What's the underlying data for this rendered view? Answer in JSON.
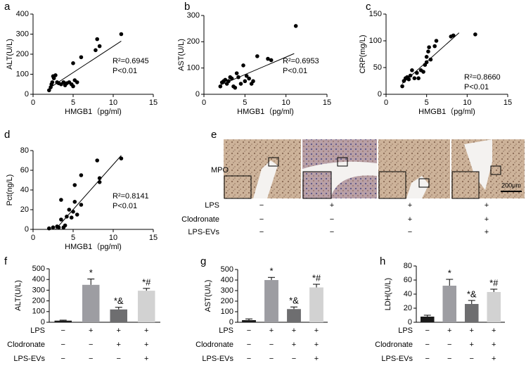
{
  "chart_data": [
    {
      "panel": "a",
      "type": "scatter",
      "xlabel": "HMGB1（pg/ml)",
      "ylabel": "ALT(U/L)",
      "annotation": [
        "R²=0.6945",
        "P<0.01"
      ],
      "xlim": [
        0,
        15
      ],
      "xticks": [
        0,
        5,
        10,
        15
      ],
      "ylim": [
        0,
        400
      ],
      "yticks": [
        0,
        100,
        200,
        300,
        400
      ],
      "color": "#000000",
      "x": [
        2,
        2.2,
        2.3,
        2.4,
        2.5,
        2.6,
        2.8,
        3,
        3.2,
        3.5,
        3.8,
        4,
        4.2,
        4.5,
        4.8,
        5,
        5.2,
        5.5,
        5,
        6,
        7.8,
        8,
        8.3,
        11
      ],
      "y": [
        20,
        35,
        50,
        60,
        90,
        80,
        95,
        60,
        55,
        50,
        60,
        45,
        55,
        60,
        50,
        40,
        70,
        60,
        155,
        185,
        220,
        275,
        240,
        300
      ],
      "trend_x": [
        2,
        11
      ],
      "trend_y": [
        30,
        265
      ]
    },
    {
      "panel": "b",
      "type": "scatter",
      "xlabel": "HMGB1（pg/ml)",
      "ylabel": "AST(U/L)",
      "annotation": [
        "R²=0.6953",
        "P<0.01"
      ],
      "xlim": [
        0,
        15
      ],
      "xticks": [
        0,
        5,
        10,
        15
      ],
      "ylim": [
        0,
        300
      ],
      "yticks": [
        0,
        100,
        200,
        300
      ],
      "color": "#000000",
      "x": [
        2,
        2.2,
        2.4,
        2.6,
        2.8,
        3,
        3.2,
        3.4,
        3.6,
        3.8,
        4,
        4.2,
        4.5,
        4.8,
        5,
        5.2,
        5.5,
        5.8,
        6,
        6.5,
        7.8,
        8.2,
        11.2
      ],
      "y": [
        30,
        45,
        50,
        55,
        40,
        50,
        65,
        60,
        30,
        25,
        80,
        65,
        40,
        110,
        50,
        70,
        60,
        40,
        50,
        145,
        135,
        130,
        260
      ],
      "trend_x": [
        2,
        11
      ],
      "trend_y": [
        35,
        155
      ]
    },
    {
      "panel": "c",
      "type": "scatter",
      "xlabel": "HMGB1（pg/ml)",
      "ylabel": "CRP(mg/L)",
      "annotation": [
        "R²=0.8660",
        "P<0.01"
      ],
      "xlim": [
        0,
        15
      ],
      "xticks": [
        0,
        5,
        10,
        15
      ],
      "ylim": [
        0,
        150
      ],
      "yticks": [
        0,
        50,
        100,
        150
      ],
      "color": "#000000",
      "x": [
        2,
        2.2,
        2.4,
        2.6,
        2.8,
        3,
        3.2,
        3.5,
        3.8,
        4,
        4.3,
        4.6,
        4.8,
        5,
        5,
        5.2,
        5.3,
        5.5,
        6,
        6.2,
        8,
        8.3,
        11
      ],
      "y": [
        15,
        25,
        30,
        32,
        28,
        35,
        45,
        30,
        40,
        30,
        45,
        42,
        55,
        60,
        70,
        80,
        88,
        65,
        90,
        100,
        108,
        110,
        112
      ],
      "trend_x": [
        2,
        9
      ],
      "trend_y": [
        20,
        115
      ]
    },
    {
      "panel": "d",
      "type": "scatter",
      "xlabel": "HMGB1（pg/ml)",
      "ylabel": "Pct(ng/L)",
      "annotation": [
        "R²=0.8141",
        "P<0.01"
      ],
      "xlim": [
        0,
        15
      ],
      "xticks": [
        0,
        5,
        10,
        15
      ],
      "ylim": [
        0,
        80
      ],
      "yticks": [
        0,
        20,
        40,
        60,
        80
      ],
      "color": "#000000",
      "x": [
        2,
        2.5,
        3,
        3.2,
        3.5,
        3.5,
        3.8,
        4,
        4.2,
        4.5,
        4.8,
        5,
        5.2,
        5.2,
        5.5,
        6,
        6,
        8,
        8.3,
        8.3,
        11
      ],
      "y": [
        1,
        2,
        3,
        2,
        10,
        30,
        2,
        4,
        13,
        20,
        12,
        18,
        28,
        45,
        15,
        55,
        25,
        70,
        52,
        48,
        72
      ],
      "trend_x": [
        2.8,
        11
      ],
      "trend_y": [
        0,
        75
      ]
    },
    {
      "panel": "f",
      "type": "bar",
      "ylabel": "ALT(U/L)",
      "ylim": [
        0,
        500
      ],
      "yticks": [
        0,
        100,
        200,
        300,
        400,
        500
      ],
      "colors": [
        "#1a1a1a",
        "#9d9da2",
        "#6e6e70",
        "#d2d2d2"
      ],
      "values": [
        15,
        350,
        120,
        295
      ],
      "errors": [
        5,
        55,
        20,
        22
      ],
      "value_annotations": [
        null,
        "*",
        "*&",
        "*#"
      ],
      "conditions": [
        {
          "name": "LPS",
          "marks": [
            "−",
            "+",
            "+",
            "+"
          ]
        },
        {
          "name": "Clodronate",
          "marks": [
            "−",
            "−",
            "+",
            "+"
          ]
        },
        {
          "name": "LPS-EVs",
          "marks": [
            "−",
            "−",
            "−",
            "+"
          ]
        }
      ]
    },
    {
      "panel": "g",
      "type": "bar",
      "ylabel": "AST(U/L)",
      "ylim": [
        0,
        500
      ],
      "yticks": [
        0,
        100,
        200,
        300,
        400,
        500
      ],
      "colors": [
        "#1a1a1a",
        "#9d9da2",
        "#6e6e70",
        "#d2d2d2"
      ],
      "values": [
        20,
        400,
        125,
        330
      ],
      "errors": [
        12,
        25,
        20,
        30
      ],
      "value_annotations": [
        null,
        "*",
        "*&",
        "*#"
      ],
      "conditions": [
        {
          "name": "LPS",
          "marks": [
            "−",
            "+",
            "+",
            "+"
          ]
        },
        {
          "name": "Clodronate",
          "marks": [
            "−",
            "−",
            "+",
            "+"
          ]
        },
        {
          "name": "LPS-EVs",
          "marks": [
            "−",
            "−",
            "−",
            "+"
          ]
        }
      ]
    },
    {
      "panel": "h",
      "type": "bar",
      "ylabel": "LDH(U/L)",
      "ylim": [
        0,
        80
      ],
      "yticks": [
        0,
        20,
        40,
        60,
        80
      ],
      "colors": [
        "#1a1a1a",
        "#9d9da2",
        "#6e6e70",
        "#d2d2d2"
      ],
      "values": [
        8,
        52,
        26,
        43
      ],
      "errors": [
        2,
        9,
        5,
        4
      ],
      "value_annotations": [
        null,
        "*",
        "*&",
        "*#"
      ],
      "conditions": [
        {
          "name": "LPS",
          "marks": [
            "−",
            "+",
            "+",
            "+"
          ]
        },
        {
          "name": "Clodronate",
          "marks": [
            "−",
            "−",
            "+",
            "+"
          ]
        },
        {
          "name": "LPS-EVs",
          "marks": [
            "−",
            "−",
            "−",
            "+"
          ]
        }
      ]
    }
  ],
  "image_panel": {
    "panel": "e",
    "row_label": "MPO",
    "scale_bar": "200μm",
    "conditions": [
      {
        "name": "LPS",
        "marks": [
          "−",
          "+",
          "+",
          "+"
        ]
      },
      {
        "name": "Clodronate",
        "marks": [
          "−",
          "−",
          "+",
          "+"
        ]
      },
      {
        "name": "LPS-EVs",
        "marks": [
          "−",
          "−",
          "−",
          "+"
        ]
      }
    ]
  }
}
